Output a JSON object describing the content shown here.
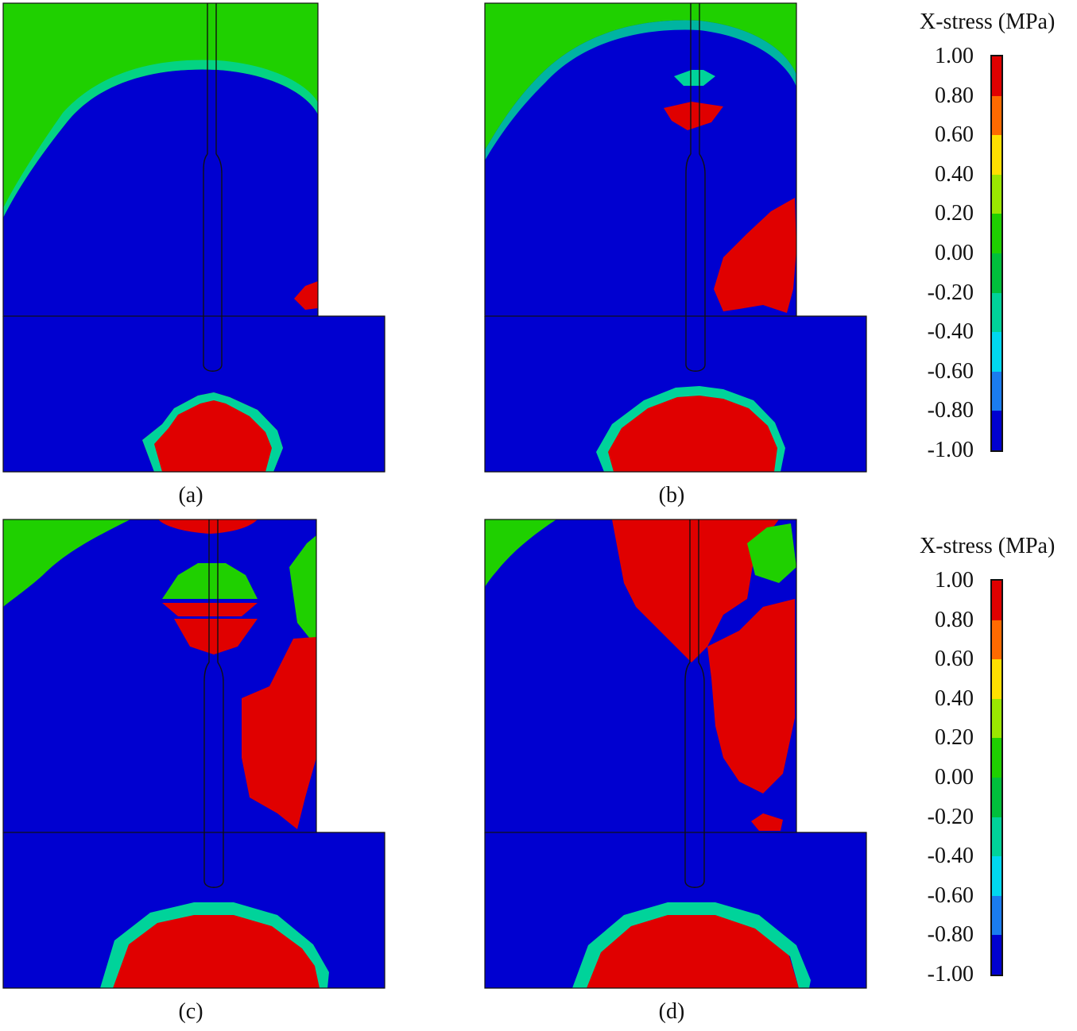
{
  "legend": {
    "title": "X-stress (MPa)",
    "ticks": [
      "1.00",
      "0.80",
      "0.60",
      "0.40",
      "0.20",
      "0.00",
      "-0.20",
      "-0.40",
      "-0.60",
      "-0.80",
      "-1.00"
    ],
    "colors": [
      "#e00000",
      "#ff6a00",
      "#ffe000",
      "#9be600",
      "#1fd000",
      "#00c03c",
      "#00d39a",
      "#00d8f0",
      "#1a7cf0",
      "#0000d0"
    ]
  },
  "panels": [
    {
      "caption": "(a)"
    },
    {
      "caption": "(b)"
    },
    {
      "caption": "(c)"
    },
    {
      "caption": "(d)"
    }
  ],
  "colors": {
    "compression": "#0000d0",
    "tension": "#e00000",
    "neutral": "#1fd000"
  }
}
